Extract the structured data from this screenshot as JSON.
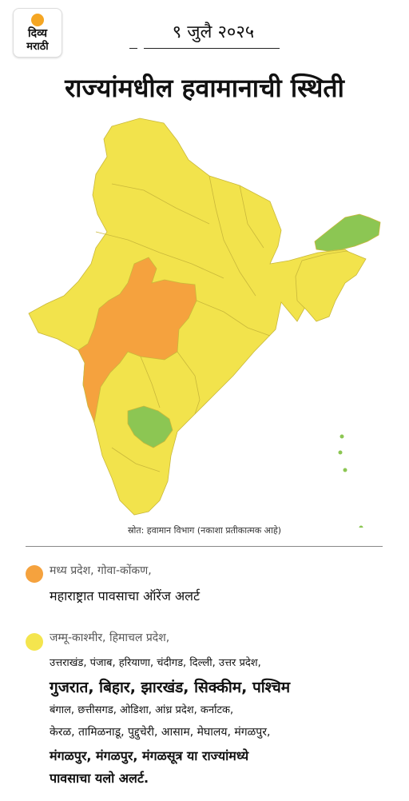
{
  "brand": {
    "line1": "दिव्य",
    "line2": "मराठी"
  },
  "date": "९ जुलै २०२५",
  "title": "राज्यांमधील हवामानाची स्थिती",
  "map": {
    "colors": {
      "yellow": "#f2e34c",
      "orange": "#f5a23e",
      "green": "#8cc653",
      "border": "#c9b83a"
    },
    "alert_zones": [
      "yellow",
      "orange",
      "green"
    ]
  },
  "source": "स्रोत: हवामान विभाग (नकाशा प्रतीकात्मक आहे)",
  "legend": {
    "orange": {
      "color": "#f5a23e",
      "line1": "मध्य प्रदेश, गोवा-कोंकण,",
      "line2": "महाराष्ट्रात पावसाचा ऑरेंज अलर्ट"
    },
    "yellow": {
      "color": "#f4e54e",
      "line1": "जम्मू-काश्मीर, हिमाचल प्रदेश,",
      "line2": "उत्तराखंड, पंजाब, हरियाणा, चंदीगड, दिल्ली, उत्तर प्रदेश,",
      "line3": "गुजरात, बिहार, झारखंड, सिक्कीम, पश्चिम",
      "line4": "बंगाल, छत्तीसगड, ओडिशा, आंध्र प्रदेश, कर्नाटक,",
      "line5": "केरळ, तामिळनाडू, पुद्दुचेरी, आसाम, मेघालय, मंगळपुर,",
      "line6": "मंगळपुर, मंगळपुर, मंगळसूत्र या राज्यांमध्ये",
      "line7": "पावसाचा यलो अलर्ट."
    }
  }
}
